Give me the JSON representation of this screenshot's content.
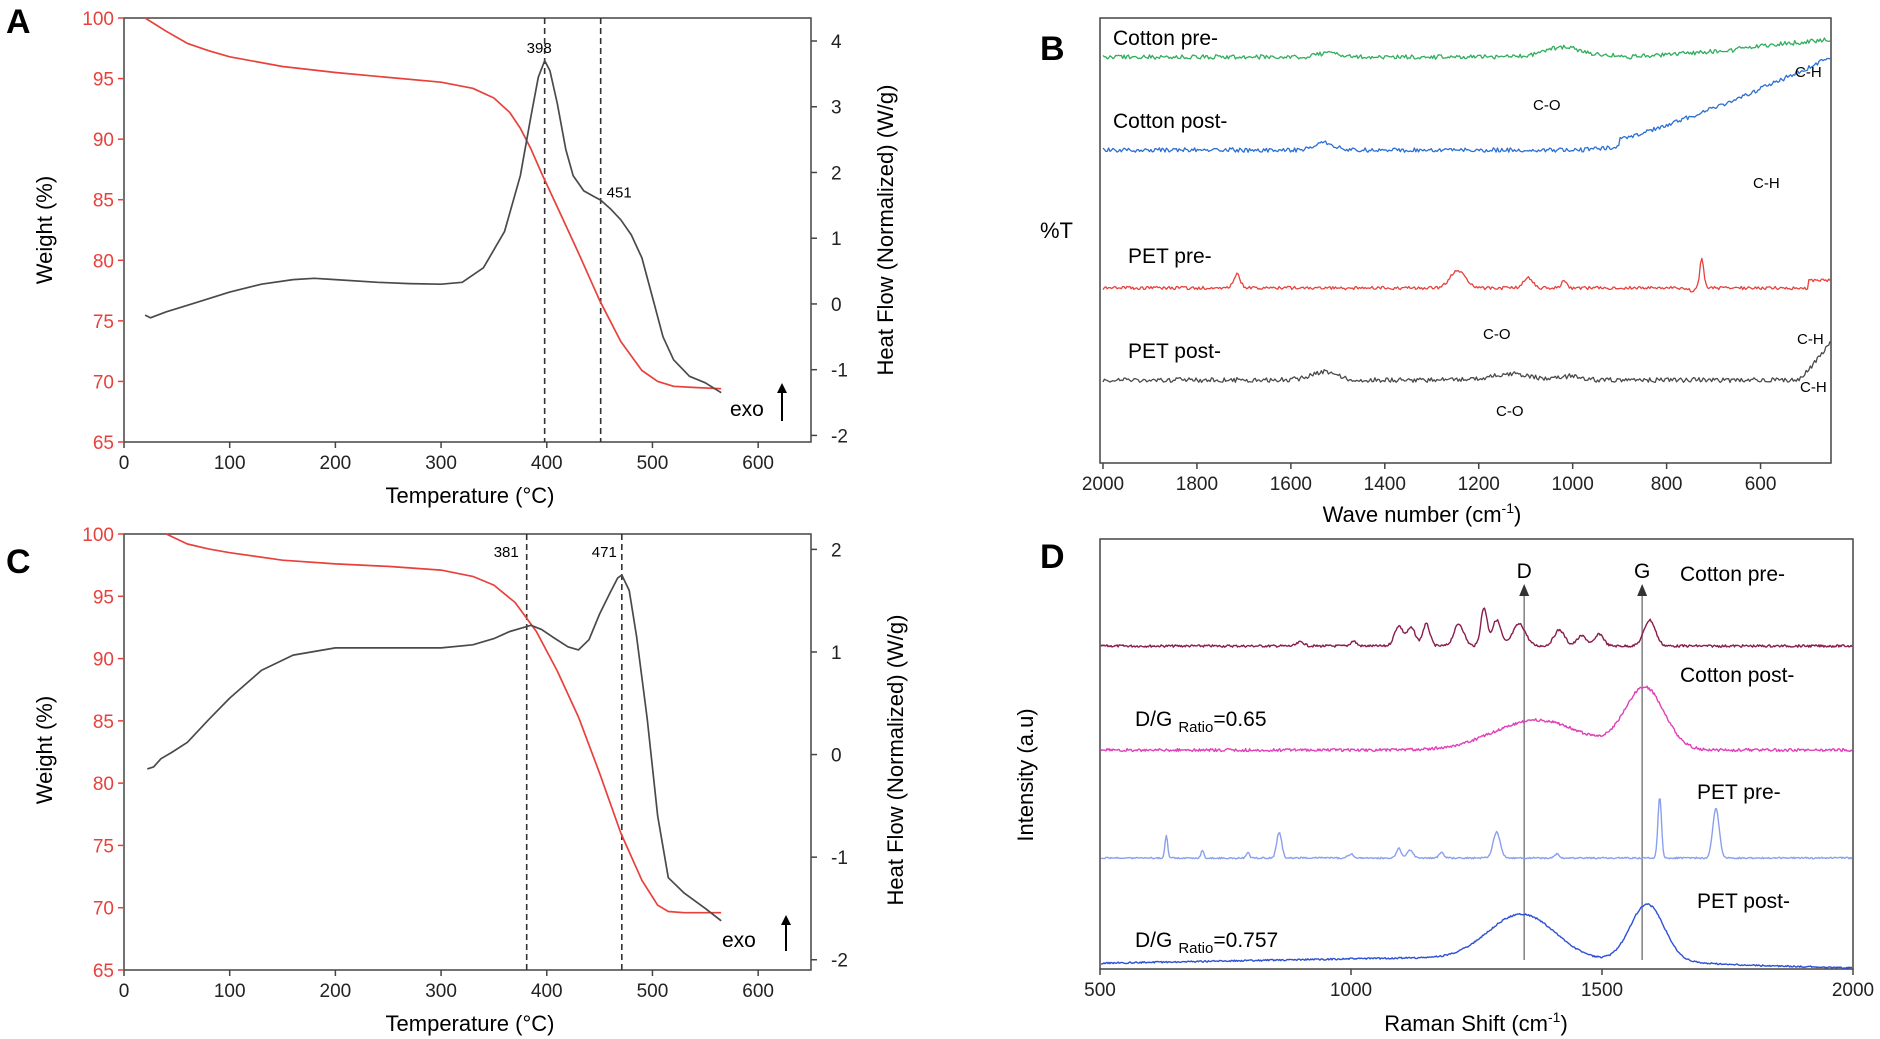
{
  "colors": {
    "weight": "#e8413c",
    "heat": "#4a4a4a",
    "frame": "#444444"
  },
  "chart_data": [
    {
      "panel": "A",
      "type": "line",
      "xlabel": "Temperature (°C)",
      "ylabel": "Weight (%)",
      "y2label": "Heat Flow (Normalized) (W/g)",
      "xlim": [
        0,
        650
      ],
      "ylim": [
        65,
        100
      ],
      "y2lim": [
        -2.1,
        4.35
      ],
      "xticks": [
        0,
        100,
        200,
        300,
        400,
        500,
        600
      ],
      "yticks": [
        65,
        70,
        75,
        80,
        85,
        90,
        95,
        100
      ],
      "y2ticks": [
        -2,
        -1,
        0,
        1,
        2,
        3,
        4
      ],
      "grid": false,
      "series": [
        {
          "axis": "left",
          "color": "#e8413c",
          "x": [
            20,
            40,
            60,
            80,
            100,
            150,
            200,
            250,
            300,
            330,
            350,
            365,
            375,
            385,
            395,
            410,
            430,
            450,
            470,
            490,
            505,
            520,
            540,
            565
          ],
          "y": [
            100,
            98.9,
            97.9,
            97.3,
            96.8,
            96.0,
            95.5,
            95.1,
            94.7,
            94.2,
            93.4,
            92.2,
            90.9,
            89.2,
            87.2,
            84.4,
            80.6,
            76.7,
            73.3,
            70.9,
            70.0,
            69.6,
            69.5,
            69.4
          ]
        },
        {
          "axis": "right",
          "color": "#4a4a4a",
          "x": [
            20,
            25,
            30,
            40,
            60,
            80,
            100,
            130,
            160,
            180,
            200,
            240,
            270,
            300,
            320,
            340,
            360,
            375,
            385,
            392,
            398,
            403,
            410,
            418,
            425,
            435,
            445,
            451,
            460,
            470,
            480,
            490,
            500,
            510,
            520,
            535,
            550,
            565
          ],
          "y": [
            -0.17,
            -0.21,
            -0.18,
            -0.12,
            -0.02,
            0.08,
            0.18,
            0.3,
            0.37,
            0.39,
            0.37,
            0.33,
            0.31,
            0.3,
            0.33,
            0.55,
            1.1,
            1.95,
            2.85,
            3.45,
            3.7,
            3.55,
            3.05,
            2.35,
            1.95,
            1.72,
            1.63,
            1.58,
            1.45,
            1.28,
            1.05,
            0.7,
            0.1,
            -0.5,
            -0.85,
            -1.1,
            -1.2,
            -1.35
          ]
        }
      ],
      "vlines": [
        398,
        451
      ],
      "annotations": [
        {
          "text": "398",
          "x": 398
        },
        {
          "text": "451",
          "x": 451
        }
      ],
      "exo": "exo"
    },
    {
      "panel": "B",
      "type": "line",
      "xlabel": "Wave number (cm-1)",
      "ylabel": "%T",
      "xlim": [
        2000,
        450
      ],
      "xticks": [
        2000,
        1800,
        1600,
        1400,
        1200,
        1000,
        800,
        600
      ],
      "series": [
        {
          "name": "Cotton pre-",
          "color": "#2fae5c"
        },
        {
          "name": "Cotton post-",
          "color": "#2a6fd6"
        },
        {
          "name": "PET pre-",
          "color": "#e8413c"
        },
        {
          "name": "PET post-",
          "color": "#4a4a4a"
        }
      ],
      "annotations": [
        {
          "text": "C-O",
          "series": 0
        },
        {
          "text": "C-H",
          "series": 0
        },
        {
          "text": "C-H",
          "series": 1
        },
        {
          "text": "C-O",
          "series": 2
        },
        {
          "text": "C-H",
          "series": 2
        },
        {
          "text": "C-H",
          "series": 3
        },
        {
          "text": "C-O",
          "series": 3
        }
      ]
    },
    {
      "panel": "C",
      "type": "line",
      "xlabel": "Temperature (°C)",
      "ylabel": "Weight (%)",
      "y2label": "Heat Flow (Normalized) (W/g)",
      "xlim": [
        0,
        650
      ],
      "ylim": [
        65,
        100
      ],
      "y2lim": [
        -2.1,
        2.15
      ],
      "xticks": [
        0,
        100,
        200,
        300,
        400,
        500,
        600
      ],
      "yticks": [
        65,
        70,
        75,
        80,
        85,
        90,
        95,
        100
      ],
      "y2ticks": [
        -2,
        -1,
        0,
        1,
        2
      ],
      "grid": false,
      "series": [
        {
          "axis": "left",
          "color": "#e8413c",
          "x": [
            40,
            60,
            80,
            100,
            150,
            200,
            250,
            300,
            330,
            350,
            370,
            390,
            410,
            430,
            450,
            470,
            490,
            505,
            515,
            530,
            565
          ],
          "y": [
            100,
            99.2,
            98.8,
            98.5,
            97.9,
            97.6,
            97.4,
            97.1,
            96.6,
            95.9,
            94.5,
            92.2,
            89.0,
            85.3,
            80.8,
            76.0,
            72.2,
            70.2,
            69.7,
            69.6,
            69.6
          ]
        },
        {
          "axis": "right",
          "color": "#4a4a4a",
          "x": [
            22,
            28,
            35,
            45,
            60,
            80,
            100,
            130,
            160,
            200,
            250,
            300,
            330,
            350,
            365,
            375,
            385,
            395,
            405,
            420,
            430,
            440,
            450,
            460,
            467,
            471,
            478,
            485,
            495,
            505,
            515,
            530,
            550,
            565
          ],
          "y": [
            -0.14,
            -0.12,
            -0.04,
            0.02,
            0.12,
            0.34,
            0.55,
            0.82,
            0.97,
            1.04,
            1.04,
            1.04,
            1.07,
            1.13,
            1.2,
            1.23,
            1.26,
            1.22,
            1.15,
            1.05,
            1.02,
            1.12,
            1.37,
            1.58,
            1.72,
            1.75,
            1.6,
            1.15,
            0.35,
            -0.6,
            -1.2,
            -1.35,
            -1.5,
            -1.62
          ]
        }
      ],
      "vlines": [
        381,
        471
      ],
      "annotations": [
        {
          "text": "381",
          "x": 381
        },
        {
          "text": "471",
          "x": 471
        }
      ],
      "exo": "exo"
    },
    {
      "panel": "D",
      "type": "line",
      "xlabel": "Raman Shift (cm-1)",
      "ylabel": "Intensity (a.u)",
      "xlim": [
        500,
        2000
      ],
      "xticks": [
        500,
        1000,
        1500,
        2000
      ],
      "series": [
        {
          "name": "Cotton pre-",
          "color": "#8a1c4e"
        },
        {
          "name": "Cotton post-",
          "color": "#e040b8"
        },
        {
          "name": "PET pre-",
          "color": "#8aa0ee"
        },
        {
          "name": "PET post-",
          "color": "#2f50d4"
        }
      ],
      "vlines": [
        {
          "label": "D",
          "x": 1345
        },
        {
          "label": "G",
          "x": 1580
        }
      ],
      "annotations": [
        {
          "text": "D/G",
          "sub": "Ratio",
          "value": "=0.65"
        },
        {
          "text": "D/G",
          "sub": "Ratio",
          "value": "=0.757"
        }
      ]
    }
  ]
}
